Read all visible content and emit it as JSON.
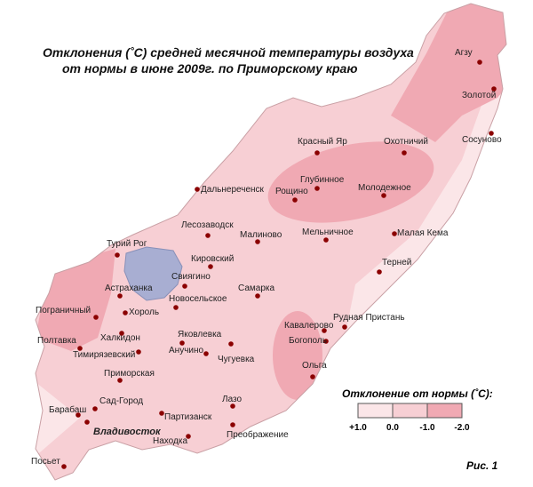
{
  "title": [
    "Отклонения (˚С) средней  месячной температуры воздуха",
    "от нормы в июне 2009г.  по Приморскому краю"
  ],
  "stations": [
    "Агзу",
    "Золотой",
    "Сосуново",
    "Красный Яр",
    "Охотничий",
    "Глубинное",
    "Рощино",
    "Молодежное",
    "Дальнереченск",
    "Лесозаводск",
    "Малиново",
    "Мельничное",
    "Малая Кема",
    "Турий Рог",
    "Кировский",
    "Терней",
    "Свиягино",
    "Астраханка",
    "Новосельское",
    "Самарка",
    "Пограничный",
    "Хороль",
    "Рудная Пристань",
    "Халкидон",
    "Яковлевка",
    "Кавалерово",
    "Полтавка",
    "Богополь",
    "Анучино",
    "Чугуевка",
    "Тимирязевский",
    "Ольга",
    "Приморская",
    "Лазо",
    "Сад-Город",
    "Барабаш",
    "Партизанск",
    "Владивосток",
    "Находка",
    "Преображение",
    "Посьет"
  ],
  "legend": {
    "title": "Отклонение от нормы (˚С):",
    "labels": [
      "+1.0",
      "0.0",
      "-1.0",
      "-2.0"
    ]
  },
  "caption": "Рис. 1"
}
